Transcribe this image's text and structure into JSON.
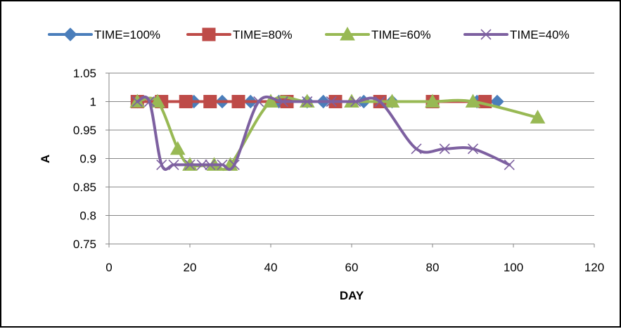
{
  "chart_data": {
    "type": "line",
    "title": "",
    "xlabel": "DAY",
    "ylabel": "A",
    "xlim": [
      0,
      120
    ],
    "ylim": [
      0.75,
      1.05
    ],
    "x_ticks": [
      0,
      20,
      40,
      60,
      80,
      100,
      120
    ],
    "y_ticks": [
      0.75,
      0.8,
      0.85,
      0.9,
      0.95,
      1,
      1.05
    ],
    "y_tick_labels": [
      "0.75",
      "0.8",
      "0.85",
      "0.9",
      "0.95",
      "1",
      "1.05"
    ],
    "grid": "horizontal",
    "legend_position": "top",
    "smooth": true,
    "series": [
      {
        "name": "TIME=100%",
        "color": "#4a7ebb",
        "marker": "diamond",
        "x": [
          7,
          12,
          21,
          28,
          35,
          42,
          49,
          53,
          63,
          67,
          70,
          80,
          91,
          96
        ],
        "y": [
          1,
          1,
          1,
          1,
          1,
          1,
          1,
          1,
          1,
          1,
          1,
          1,
          1,
          1
        ]
      },
      {
        "name": "TIME=80%",
        "color": "#be4b48",
        "marker": "square",
        "x": [
          7,
          13,
          19,
          25,
          32,
          44,
          56,
          67,
          80,
          93
        ],
        "y": [
          1,
          1,
          1,
          1,
          1,
          1,
          1,
          1,
          1,
          1
        ]
      },
      {
        "name": "TIME=60%",
        "color": "#98b954",
        "marker": "triangle",
        "x": [
          7,
          12,
          17,
          20,
          26,
          30,
          40,
          49,
          60,
          70,
          80,
          90,
          106
        ],
        "y": [
          1,
          1,
          0.917,
          0.889,
          0.889,
          0.889,
          1,
          1,
          1,
          1,
          1,
          1,
          0.972
        ]
      },
      {
        "name": "TIME=40%",
        "color": "#7d60a0",
        "marker": "x",
        "x": [
          7,
          10,
          13,
          16,
          20,
          23,
          25,
          28,
          31,
          37,
          43,
          49,
          55,
          61,
          67,
          76,
          83,
          90,
          99
        ],
        "y": [
          1,
          1,
          0.889,
          0.889,
          0.889,
          0.889,
          0.889,
          0.889,
          0.889,
          1,
          1,
          1,
          1,
          1,
          1,
          0.917,
          0.917,
          0.917,
          0.889
        ]
      }
    ]
  }
}
